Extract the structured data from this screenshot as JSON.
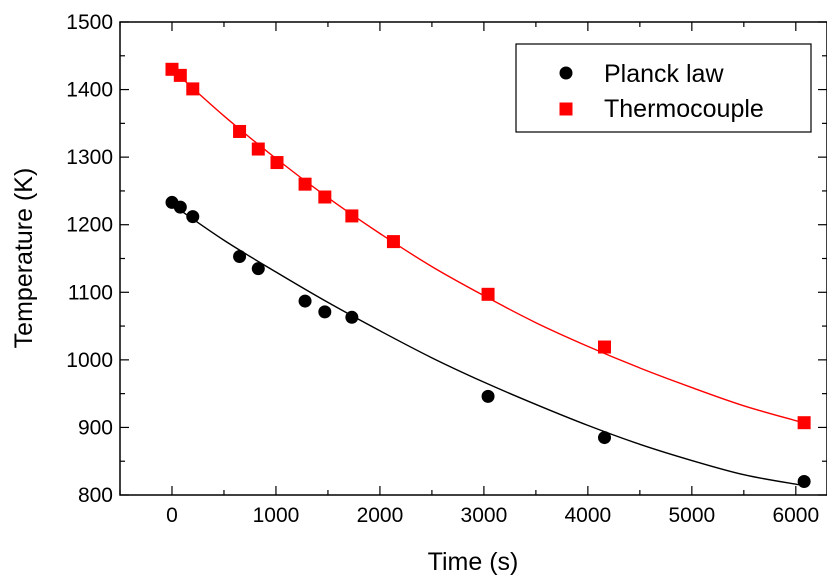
{
  "chart_data": {
    "type": "scatter",
    "title": "",
    "xlabel": "Time (s)",
    "ylabel": "Temperature (K)",
    "xlim": [
      -500,
      6300
    ],
    "ylim": [
      800,
      1500
    ],
    "xticks": [
      0,
      1000,
      2000,
      3000,
      4000,
      5000,
      6000
    ],
    "yticks": [
      800,
      900,
      1000,
      1100,
      1200,
      1300,
      1400,
      1500
    ],
    "legend": "top-right",
    "grid": false,
    "series": [
      {
        "name": "Planck law",
        "marker": "circle",
        "color": "#000000",
        "x": [
          0,
          80,
          200,
          650,
          830,
          1280,
          1470,
          1730,
          3040,
          4160,
          6080
        ],
        "y": [
          1233,
          1226,
          1212,
          1153,
          1135,
          1087,
          1071,
          1063,
          946,
          885,
          820
        ],
        "fit": {
          "x": [
            0,
            500,
            1000,
            1500,
            2000,
            2500,
            3000,
            3500,
            4000,
            4500,
            5000,
            5500,
            6000,
            6080
          ],
          "y": [
            1230,
            1177,
            1130,
            1085,
            1043,
            1003,
            967,
            934,
            903,
            875,
            851,
            830,
            816,
            815
          ]
        }
      },
      {
        "name": "Thermocouple",
        "marker": "square",
        "color": "#ff0000",
        "x": [
          0,
          80,
          200,
          650,
          830,
          1010,
          1280,
          1470,
          1730,
          2130,
          3040,
          4160,
          6080
        ],
        "y": [
          1430,
          1421,
          1401,
          1338,
          1312,
          1292,
          1260,
          1241,
          1213,
          1175,
          1097,
          1019,
          907
        ],
        "fit": {
          "x": [
            0,
            500,
            1000,
            1500,
            2000,
            2500,
            3000,
            3500,
            4000,
            4500,
            5000,
            5500,
            6000,
            6080
          ],
          "y": [
            1430,
            1361,
            1298,
            1240,
            1187,
            1138,
            1095,
            1055,
            1020,
            988,
            959,
            932,
            910,
            907
          ]
        }
      }
    ]
  }
}
